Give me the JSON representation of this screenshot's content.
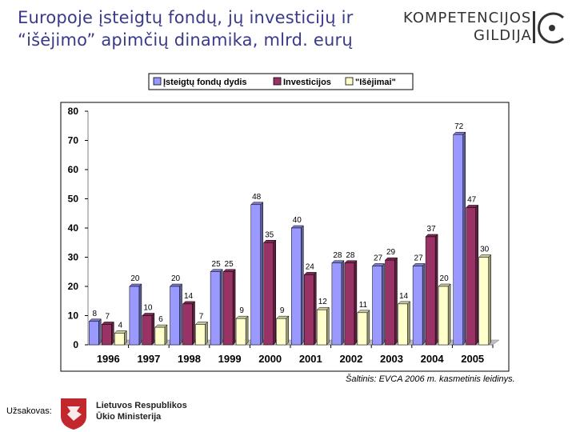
{
  "header": {
    "title_line1": "Europoje įsteigtų fondų, jų investicijų ir",
    "title_line2": "“išėjimo” apimčių dinamika, mlrd. eurų"
  },
  "logo": {
    "line1": "KOMPETENCIJOS",
    "line2": "GILDIJA",
    "mark": "IG"
  },
  "footer": {
    "source": "Šaltinis: EVCA 2006 m. kasmetinis leidinys.",
    "client_label": "Užsakovas:",
    "ministry_line1": "Lietuvos Respublikos",
    "ministry_line2": "Ūkio Ministerija"
  },
  "colors": {
    "series1": "#9999ff",
    "series2": "#993366",
    "series3": "#ffffcc",
    "floor": "#c0c0c0",
    "title": "#3a3a8c"
  },
  "chart_data": {
    "type": "bar",
    "title": "",
    "xlabel": "",
    "ylabel": "",
    "ylim": [
      0,
      80
    ],
    "yticks": [
      0,
      10,
      20,
      30,
      40,
      50,
      60,
      70,
      80
    ],
    "categories": [
      "1996",
      "1997",
      "1998",
      "1999",
      "2000",
      "2001",
      "2002",
      "2003",
      "2004",
      "2005"
    ],
    "legend_position": "top",
    "series": [
      {
        "name": "Įsteigtų fondų dydis",
        "values": [
          8,
          20,
          20,
          25,
          48,
          40,
          28,
          27,
          27,
          72
        ]
      },
      {
        "name": "Investicijos",
        "values": [
          7,
          10,
          14,
          25,
          35,
          24,
          28,
          29,
          37,
          47
        ]
      },
      {
        "name": "\"Išėjimai\"",
        "values": [
          4,
          6,
          7,
          9,
          9,
          12,
          11,
          14,
          20,
          30
        ]
      }
    ]
  }
}
